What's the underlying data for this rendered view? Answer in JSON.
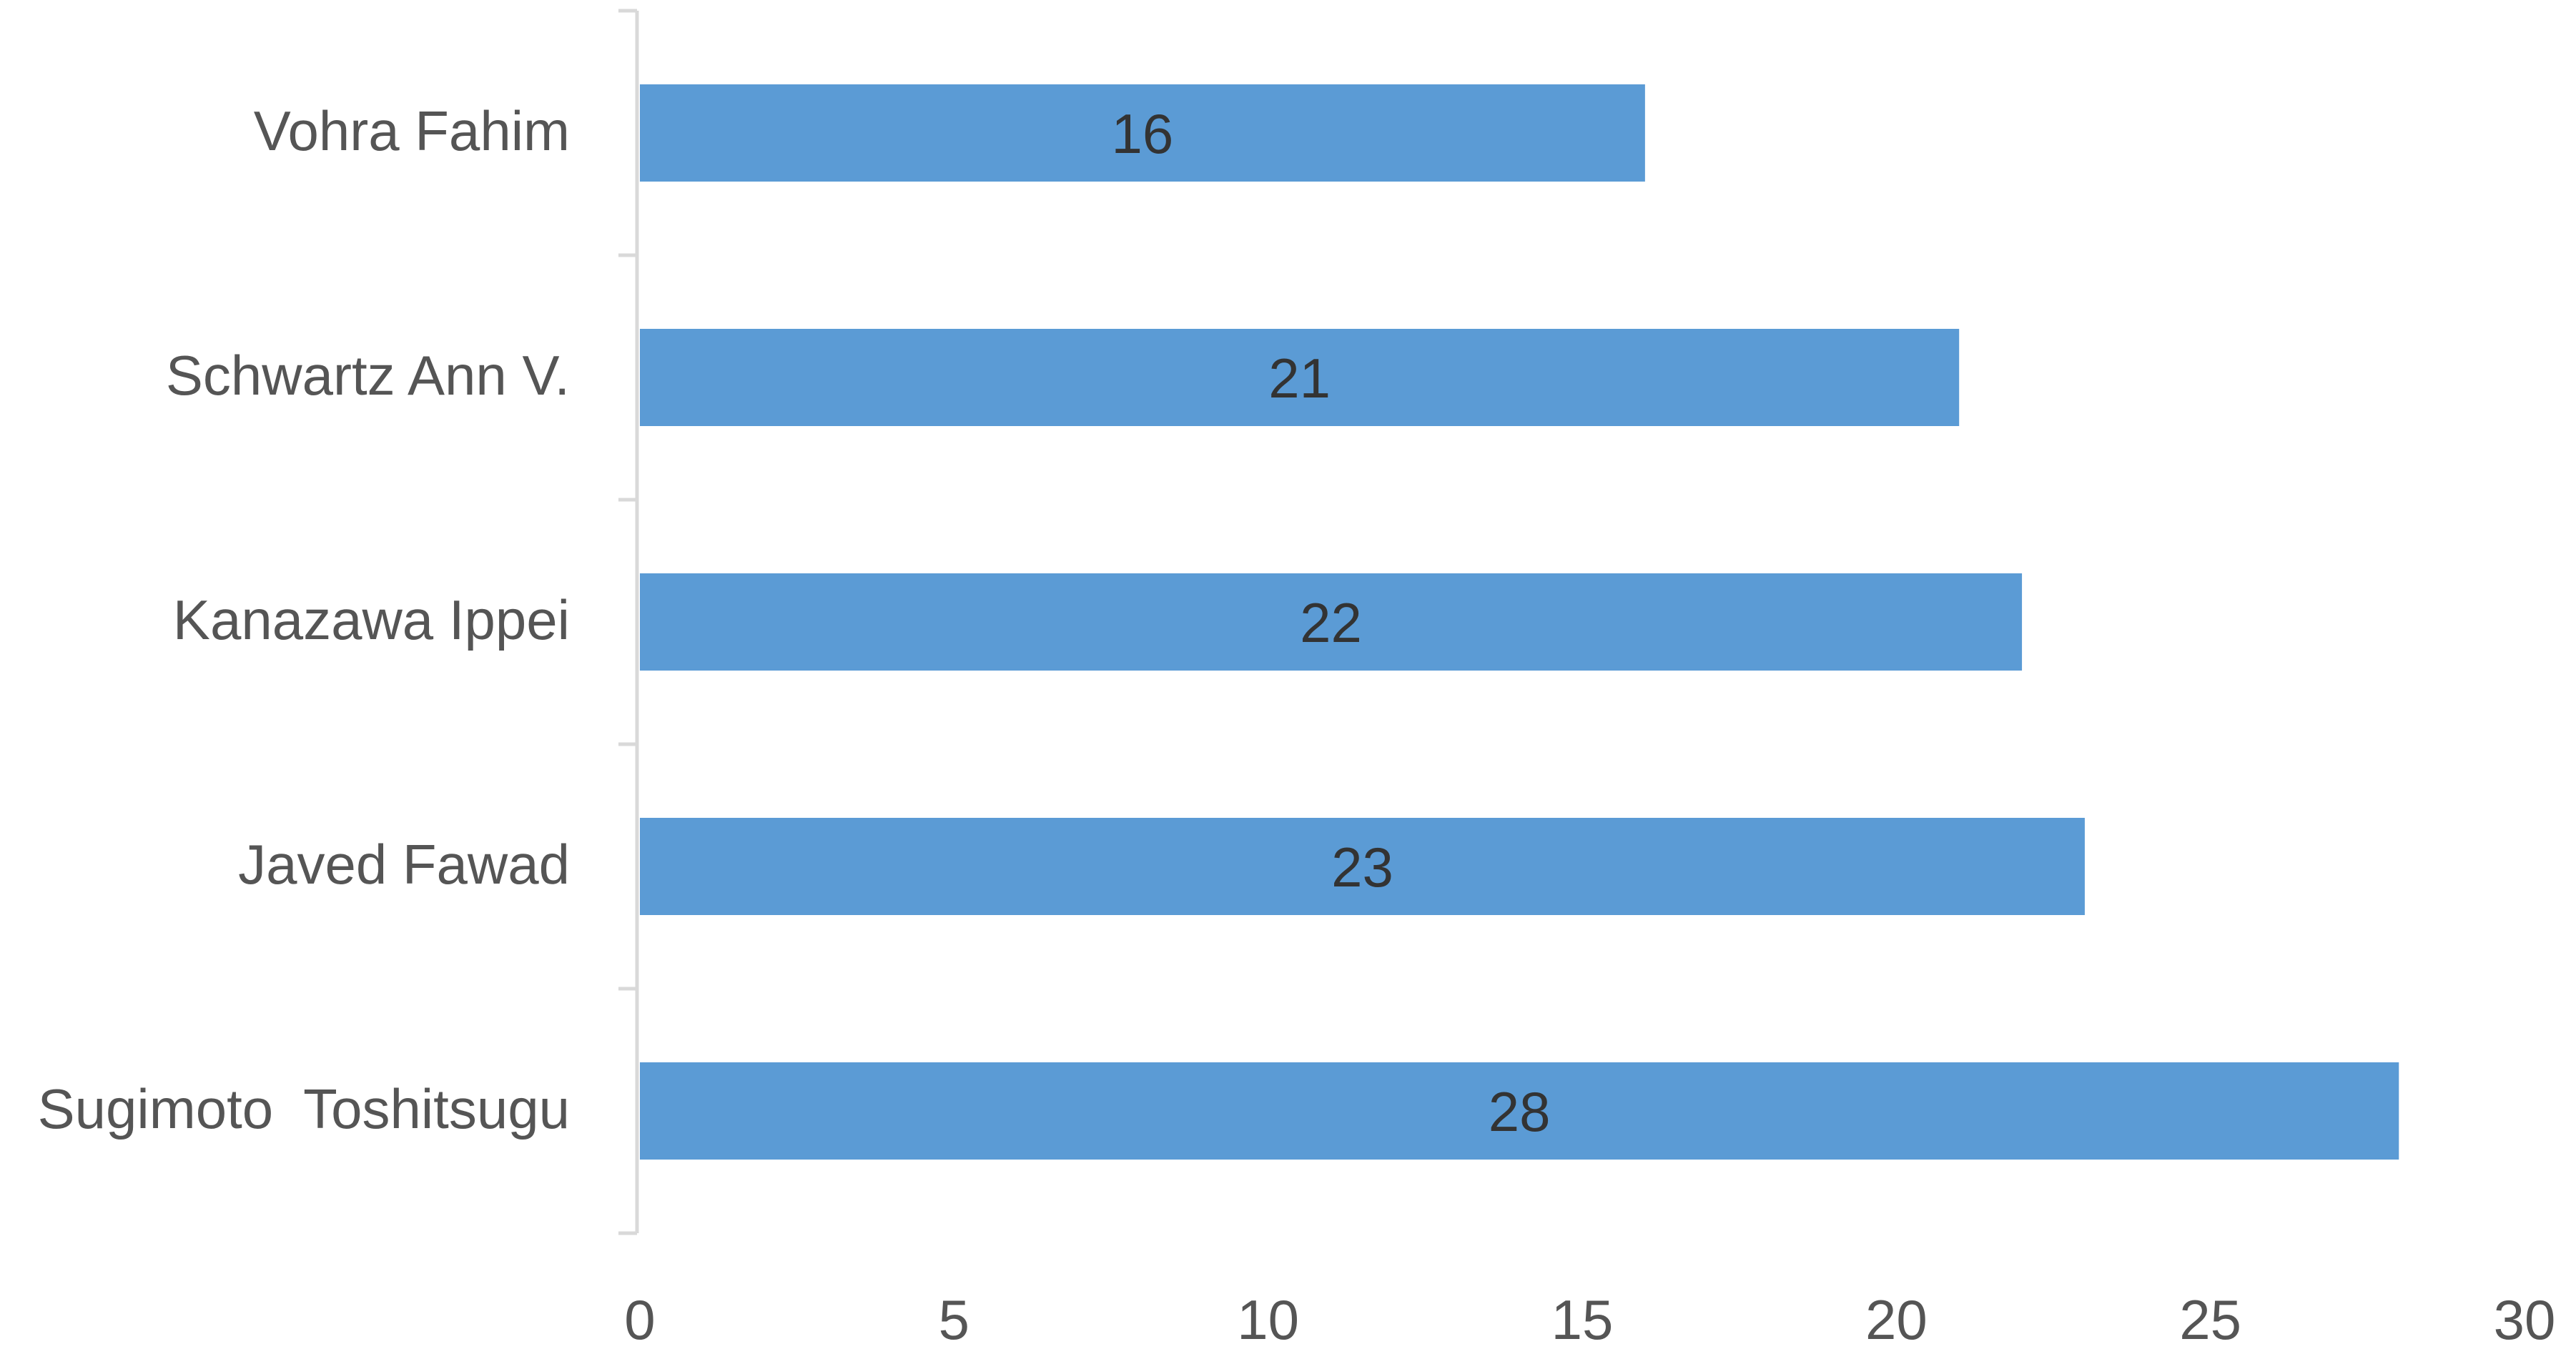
{
  "chart_data": {
    "type": "bar",
    "orientation": "horizontal",
    "categories": [
      "Vohra Fahim",
      "Schwartz Ann V.",
      "Kanazawa Ippei",
      "Javed Fawad",
      "Sugimoto  Toshitsugu"
    ],
    "values": [
      16,
      21,
      22,
      23,
      28
    ],
    "xlim": [
      0,
      30
    ],
    "xticks": [
      0,
      5,
      10,
      15,
      20,
      25,
      30
    ],
    "xtick_labels": [
      "0",
      "5",
      "10",
      "15",
      "20",
      "25",
      "30"
    ],
    "data_labels": [
      "16",
      "21",
      "22",
      "23",
      "28"
    ],
    "title": "",
    "xlabel": "",
    "ylabel": "",
    "grid": false,
    "legend": "none",
    "bar_color": "#5B9BD5"
  }
}
